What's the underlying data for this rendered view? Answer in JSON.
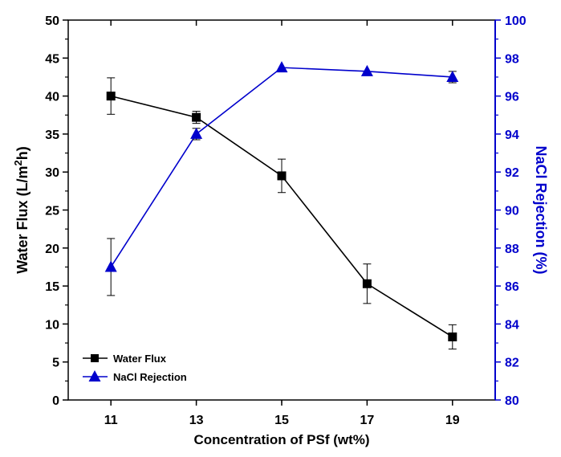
{
  "chart_data": {
    "type": "line",
    "categories": [
      "11",
      "13",
      "15",
      "17",
      "19"
    ],
    "x": [
      11,
      13,
      15,
      17,
      19
    ],
    "xlabel": "Concentration of PSf (wt%)",
    "ylabel_left": "Water Flux (L/m",
    "ylabel_left_sup": "2",
    "ylabel_left_tail": "h)",
    "ylabel_right": "NaCl Rejection (%)",
    "xlim": [
      10,
      20
    ],
    "ylim_left": [
      0,
      50
    ],
    "ylim_right": [
      80,
      100
    ],
    "yticks_left": [
      "0",
      "5",
      "10",
      "15",
      "20",
      "25",
      "30",
      "35",
      "40",
      "45",
      "50"
    ],
    "yticks_right": [
      "80",
      "82",
      "84",
      "86",
      "88",
      "90",
      "92",
      "94",
      "96",
      "98",
      "100"
    ],
    "legend_position": "bottom-left",
    "series": [
      {
        "name": "Water Flux",
        "axis": "left",
        "color": "#000000",
        "marker": "square",
        "values": [
          40.0,
          37.2,
          29.5,
          15.3,
          8.3
        ],
        "errors": [
          2.4,
          0.8,
          2.2,
          2.6,
          1.6
        ]
      },
      {
        "name": "NaCl Rejection",
        "axis": "right",
        "color": "#0000cc",
        "marker": "triangle",
        "values": [
          87.0,
          94.0,
          97.5,
          97.3,
          97.0
        ],
        "errors": [
          1.5,
          0.3,
          0.0,
          0.0,
          0.3
        ]
      }
    ]
  }
}
